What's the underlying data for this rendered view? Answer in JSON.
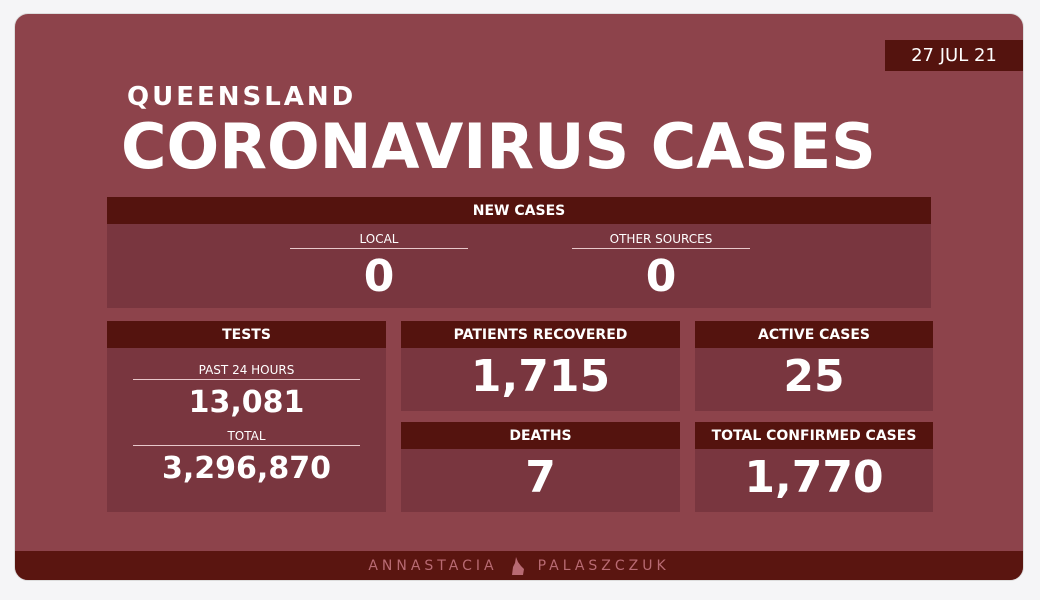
{
  "date": "27 JUL 21",
  "subtitle": "QUEENSLAND",
  "title": "CORONAVIRUS CASES",
  "new_cases": {
    "header": "NEW CASES",
    "local_label": "LOCAL",
    "local": "0",
    "other_label": "OTHER SOURCES",
    "other": "0"
  },
  "tests": {
    "header": "TESTS",
    "past_label": "PAST 24 HOURS",
    "past": "13,081",
    "total_label": "TOTAL",
    "total": "3,296,870"
  },
  "recovered": {
    "header": "PATIENTS RECOVERED",
    "value": "1,715"
  },
  "active": {
    "header": "ACTIVE CASES",
    "value": "25"
  },
  "deaths": {
    "header": "DEATHS",
    "value": "7"
  },
  "confirmed": {
    "header": "TOTAL CONFIRMED CASES",
    "value": "1,770"
  },
  "footer": {
    "first": "ANNASTACIA",
    "last": "PALASZCZUK",
    "icon": "queensland-map-icon"
  },
  "colors": {
    "background": "#8d434b",
    "panel": "#79363f",
    "header": "#54130e"
  }
}
